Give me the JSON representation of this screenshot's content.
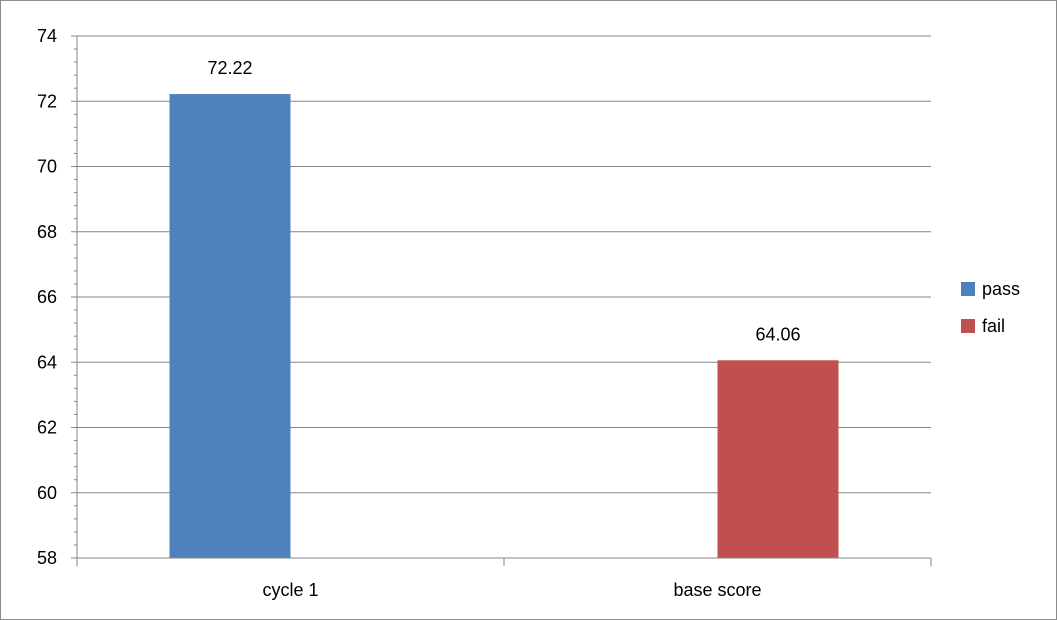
{
  "chart_data": {
    "type": "bar",
    "categories": [
      "cycle 1",
      "base score"
    ],
    "series": [
      {
        "name": "pass",
        "values": [
          72.22,
          null
        ],
        "color": "#4f81bd"
      },
      {
        "name": "fail",
        "values": [
          null,
          64.06
        ],
        "color": "#c0504d"
      }
    ],
    "data_labels": [
      "72.22",
      "64.06"
    ],
    "ylim": [
      58,
      74
    ],
    "yticks": [
      58,
      60,
      62,
      64,
      66,
      68,
      70,
      72,
      74
    ],
    "ytick_labels": [
      "58",
      "60",
      "62",
      "64",
      "66",
      "68",
      "70",
      "72",
      "74"
    ],
    "minor_ticks_per_major": 5,
    "grid": true,
    "legend_position": "right",
    "title": "",
    "xlabel": "",
    "ylabel": ""
  },
  "colors": {
    "grid": "#868686",
    "axis": "#868686"
  }
}
